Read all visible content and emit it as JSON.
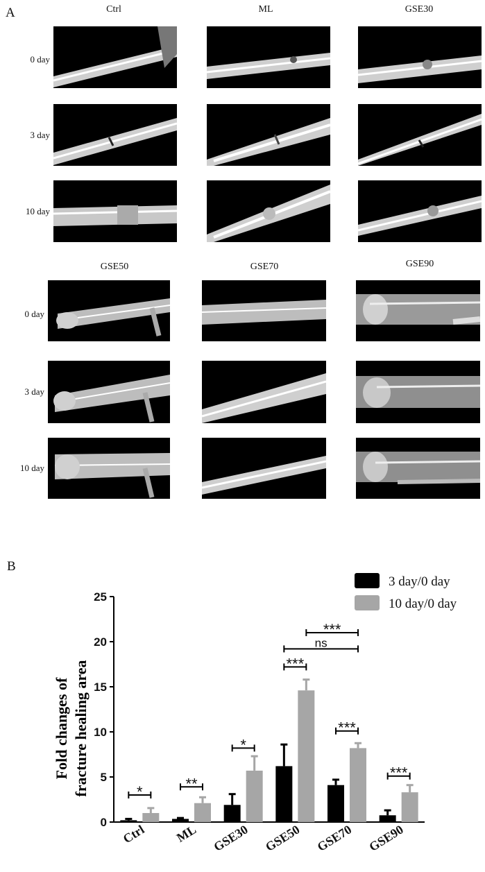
{
  "panel_a": {
    "letter": "A",
    "row_labels": [
      "0 day",
      "3 day",
      "10 day"
    ],
    "top_groups": [
      "Ctrl",
      "ML",
      "GSE30"
    ],
    "bottom_groups": [
      "GSE50",
      "GSE70",
      "GSE90"
    ]
  },
  "chart_data": {
    "panel_letter": "B",
    "type": "bar",
    "title": "",
    "xlabel": "",
    "ylabel": "Fold changes of fracture healing area",
    "ylabel_lines": [
      "Fold changes of",
      "fracture healing area"
    ],
    "ylim": [
      0,
      25
    ],
    "yticks": [
      "0",
      "5",
      "10",
      "15",
      "20",
      "25"
    ],
    "grid": false,
    "legend_position": "top-right",
    "categories": [
      "Ctrl",
      "ML",
      "GSE30",
      "GSE50",
      "GSE70",
      "GSE90"
    ],
    "series": [
      {
        "name": "3 day/0 day",
        "color": "#000000",
        "values": [
          0.2,
          0.35,
          1.9,
          6.2,
          4.1,
          0.75
        ],
        "errors": [
          0.15,
          0.1,
          1.2,
          2.4,
          0.6,
          0.55
        ]
      },
      {
        "name": "10 day/0 day",
        "color": "#a6a6a6",
        "values": [
          1.0,
          2.1,
          5.7,
          14.6,
          8.2,
          3.3
        ],
        "errors": [
          0.55,
          0.65,
          1.6,
          1.2,
          0.55,
          0.8
        ]
      }
    ],
    "annotations": [
      {
        "label": "*",
        "from": "Ctrl",
        "to": "Ctrl",
        "y": 3.0
      },
      {
        "label": "**",
        "from": "ML",
        "to": "ML",
        "y": 3.9
      },
      {
        "label": "*",
        "from": "GSE30",
        "to": "GSE30",
        "y": 8.2
      },
      {
        "label": "***",
        "from": "GSE50",
        "to": "GSE50",
        "y": 17.2
      },
      {
        "label": "ns",
        "from": "GSE50",
        "to": "GSE70",
        "y": 19.2
      },
      {
        "label": "***",
        "from": "GSE50",
        "to": "GSE70",
        "y": 21.0,
        "fromSeries": 1
      },
      {
        "label": "***",
        "from": "GSE70",
        "to": "GSE70",
        "y": 10.1
      },
      {
        "label": "***",
        "from": "GSE90",
        "to": "GSE90",
        "y": 5.1
      }
    ]
  }
}
